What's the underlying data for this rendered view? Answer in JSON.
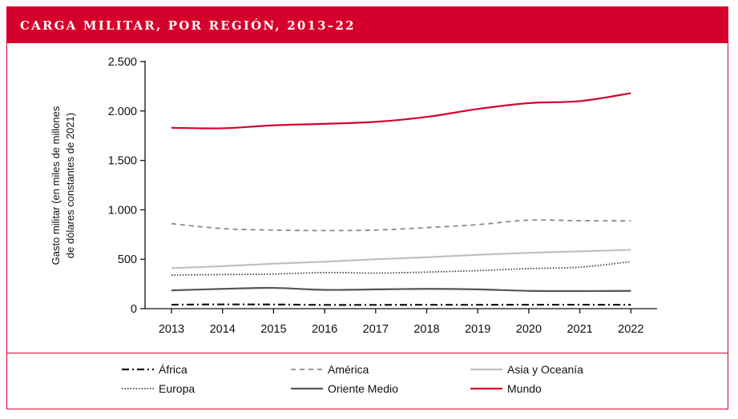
{
  "header": {
    "title": "CARGA MILITAR, POR REGIÓN, 2013–22"
  },
  "chart_data": {
    "type": "line",
    "title": "CARGA MILITAR, POR REGIÓN, 2013–22",
    "ylabel_line1": "Gasto militar (en miles de millones",
    "ylabel_line2": "de dólares constantes de 2021)",
    "x": [
      "2013",
      "2014",
      "2015",
      "2016",
      "2017",
      "2018",
      "2019",
      "2020",
      "2021",
      "2022"
    ],
    "ylim": [
      0,
      2500
    ],
    "yticks": [
      0,
      500,
      1000,
      1500,
      2000,
      2500
    ],
    "ytick_labels": [
      "0",
      "500",
      "1.000",
      "1.500",
      "2.000",
      "2.500"
    ],
    "grid": false,
    "legend_position": "bottom",
    "series": [
      {
        "name": "África",
        "style": "dashdot",
        "color": "#111111",
        "values": [
          40,
          43,
          42,
          38,
          38,
          39,
          39,
          40,
          40,
          39
        ]
      },
      {
        "name": "América",
        "style": "dashed",
        "color": "#8a8a8a",
        "values": [
          860,
          810,
          795,
          790,
          795,
          820,
          850,
          895,
          890,
          888
        ]
      },
      {
        "name": "Asia y Oceanía",
        "style": "solid-light",
        "color": "#bdbdbd",
        "values": [
          410,
          430,
          455,
          475,
          500,
          520,
          545,
          565,
          580,
          595
        ]
      },
      {
        "name": "Europa",
        "style": "dotted",
        "color": "#444444",
        "values": [
          340,
          345,
          350,
          365,
          360,
          370,
          385,
          405,
          420,
          475
        ]
      },
      {
        "name": "Oriente Medio",
        "style": "solid-dark",
        "color": "#555555",
        "values": [
          185,
          200,
          210,
          190,
          195,
          200,
          195,
          180,
          178,
          180
        ]
      },
      {
        "name": "Mundo",
        "style": "solid",
        "color": "#d6002c",
        "values": [
          1830,
          1825,
          1855,
          1870,
          1890,
          1940,
          2020,
          2080,
          2100,
          2180
        ]
      }
    ]
  }
}
